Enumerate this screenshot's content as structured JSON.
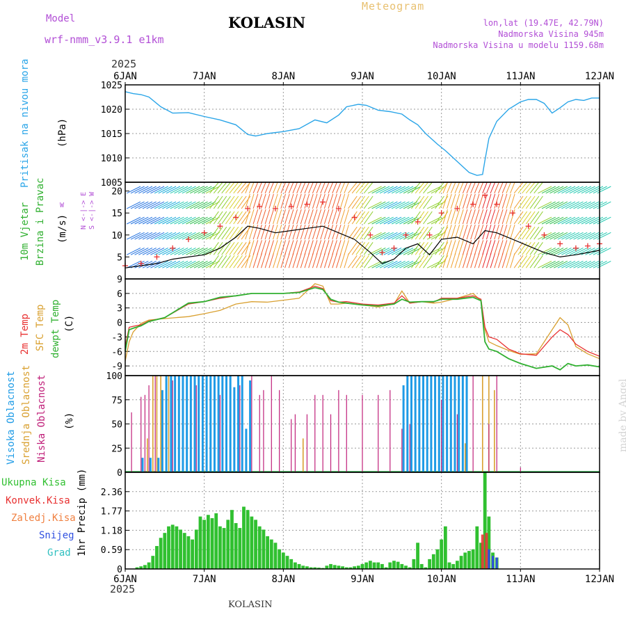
{
  "header": {
    "title": "KOLASIN",
    "model_label": "Model",
    "model_name": "wrf-nmm_v3.9.1 e1km",
    "meteogram": "Meteogram",
    "location": "lon,lat (19.47E, 42.79N)",
    "altitude": "Nadmorska Visina 945m",
    "model_altitude": "Nadmorska Visina u modelu 1159.68m",
    "year_top": "2025",
    "year_bottom": "2025",
    "footer": "KOLASIN",
    "made_by": "made by Angel"
  },
  "colors": {
    "pressure": "#2aa5e8",
    "wind_speed": "#000000",
    "gust": "#e83030",
    "temp2m": "#e83030",
    "sfc_temp": "#d9a030",
    "dewpoint": "#30b030",
    "high_cloud": "#1e9be6",
    "mid_cloud": "#d9a030",
    "low_cloud": "#c0207a",
    "total_precip": "#30c030",
    "conv_precip": "#e83030",
    "freezing_precip": "#f08040",
    "snow": "#3050e0",
    "hail": "#30c0c0"
  },
  "x_axis": {
    "ticks": [
      "6JAN",
      "7JAN",
      "8JAN",
      "9JAN",
      "10JAN",
      "11JAN",
      "12JAN"
    ]
  },
  "panels": {
    "pressure": {
      "label": "Pritisak na nivou mora",
      "unit": "(hPa)",
      "ticks": [
        "1005",
        "1010",
        "1015",
        "1020",
        "1025"
      ]
    },
    "wind": {
      "label1": "10m Vjetar",
      "label2": "Brzina i Pravac",
      "unit": "(m/s)",
      "ticks": [
        "5",
        "10",
        "15",
        "20"
      ],
      "compass": "N <-|-> E",
      "compass2": "W",
      "compass3": "S <-|-> W"
    },
    "temp": {
      "label1": "2m Temp",
      "label2": "SFC Temp",
      "label3": "dewpt Temp",
      "unit": "(C)",
      "ticks": [
        "-9",
        "-6",
        "-3",
        "0",
        "3",
        "6",
        "9"
      ]
    },
    "cloud": {
      "label1": "Visoka Oblacnost",
      "label2": "Srednja Oblacnost",
      "label3": "Niska Oblacnost",
      "unit": "(%)",
      "ticks": [
        "0",
        "25",
        "50",
        "75",
        "100"
      ]
    },
    "precip": {
      "label1": "Ukupna Kisa",
      "label2": "Konvek.Kisa",
      "label3": "Zaledj.Kisa",
      "label4": "Snijeg",
      "label5": "Grad",
      "unit": "1hr Precip (mm)",
      "ticks": [
        "0",
        "0.59",
        "1.18",
        "1.77",
        "2.36"
      ]
    }
  },
  "chart_data": [
    {
      "type": "line",
      "name": "pressure",
      "ylabel": "Pritisak na nivou mora (hPa)",
      "ylim": [
        1005,
        1025
      ],
      "x_days": [
        0,
        0.1,
        0.2,
        0.3,
        0.45,
        0.6,
        0.8,
        1.0,
        1.2,
        1.4,
        1.55,
        1.65,
        1.8,
        2.0,
        2.2,
        2.4,
        2.55,
        2.7,
        2.8,
        2.95,
        3.05,
        3.2,
        3.35,
        3.5,
        3.6,
        3.7,
        3.8,
        3.95,
        4.05,
        4.15,
        4.25,
        4.35,
        4.45,
        4.52,
        4.55,
        4.6,
        4.7,
        4.85,
        5.0,
        5.1,
        5.2,
        5.3,
        5.4,
        5.5,
        5.6,
        5.7,
        5.8,
        5.9,
        6.0
      ],
      "y": [
        1023.6,
        1023.2,
        1023.0,
        1022.5,
        1020.5,
        1019.2,
        1019.3,
        1018.5,
        1017.8,
        1016.8,
        1014.8,
        1014.5,
        1015.0,
        1015.4,
        1016.0,
        1017.8,
        1017.2,
        1018.8,
        1020.5,
        1021.0,
        1020.8,
        1019.8,
        1019.5,
        1019.0,
        1017.8,
        1016.8,
        1015.0,
        1012.8,
        1011.5,
        1010.0,
        1008.5,
        1007.0,
        1006.4,
        1006.6,
        1009.5,
        1014.0,
        1017.5,
        1020.0,
        1021.5,
        1022.0,
        1022.0,
        1021.2,
        1019.2,
        1020.3,
        1021.5,
        1022.0,
        1021.8,
        1022.3,
        1022.3
      ]
    },
    {
      "type": "line",
      "name": "wind",
      "ylabel": "(m/s)",
      "ylim": [
        0,
        22
      ],
      "x_days": [
        0,
        0.2,
        0.4,
        0.6,
        0.8,
        1.0,
        1.2,
        1.4,
        1.55,
        1.7,
        1.9,
        2.1,
        2.3,
        2.5,
        2.7,
        2.9,
        3.1,
        3.25,
        3.4,
        3.55,
        3.7,
        3.85,
        4.0,
        4.2,
        4.4,
        4.55,
        4.7,
        4.9,
        5.1,
        5.3,
        5.5,
        5.7,
        5.85,
        6.0
      ],
      "speed": [
        2.5,
        3,
        3.5,
        4.5,
        5,
        5.5,
        7,
        9.5,
        12,
        11.5,
        10.5,
        11,
        11.5,
        12,
        10.5,
        9,
        6,
        3.5,
        4.5,
        7,
        8,
        5.5,
        9,
        9.5,
        8,
        11,
        10.5,
        9,
        7.5,
        6,
        5,
        5.5,
        6,
        6.5
      ],
      "gust": [
        3,
        3.5,
        5,
        7,
        9,
        10.5,
        12,
        14,
        16,
        16.5,
        16,
        16.5,
        17,
        17.5,
        16,
        14,
        10,
        6,
        7,
        10,
        13,
        10,
        15,
        16,
        17,
        19,
        17,
        15,
        12,
        10,
        8,
        7,
        7.5,
        8
      ]
    },
    {
      "type": "line",
      "name": "temperature",
      "ylabel": "(C)",
      "ylim": [
        -11,
        9
      ],
      "x_days": [
        0,
        0.05,
        0.1,
        0.2,
        0.3,
        0.5,
        0.8,
        1.0,
        1.2,
        1.4,
        1.6,
        1.8,
        2.0,
        2.2,
        2.4,
        2.5,
        2.6,
        2.7,
        2.8,
        3.0,
        3.2,
        3.4,
        3.5,
        3.6,
        3.75,
        3.9,
        4.0,
        4.2,
        4.4,
        4.5,
        4.55,
        4.6,
        4.7,
        4.85,
        5.0,
        5.2,
        5.4,
        5.5,
        5.6,
        5.7,
        5.85,
        6.0
      ],
      "temp2m": [
        -5,
        -1,
        -0.8,
        -0.5,
        0.3,
        1,
        3.8,
        4.3,
        5,
        5.5,
        6,
        6,
        6,
        6.3,
        7.5,
        7,
        4.5,
        4.2,
        4.3,
        3.8,
        3.6,
        4,
        5.5,
        4,
        4.3,
        4.2,
        5,
        5,
        5.5,
        4.8,
        -1,
        -3,
        -3.5,
        -5.5,
        -6.5,
        -6.8,
        -3,
        -1.5,
        -2.5,
        -4.5,
        -6,
        -7
      ],
      "sfc_temp": [
        -8,
        -4,
        -2,
        -0.2,
        0.5,
        0.8,
        1.2,
        1.8,
        2.5,
        3.8,
        4.3,
        4.2,
        4.6,
        5.0,
        8,
        7.5,
        3.8,
        3.8,
        4.0,
        3.6,
        3.2,
        3.8,
        6.5,
        4,
        4.3,
        4.0,
        4.2,
        5.0,
        6.0,
        4.5,
        -1.5,
        -4,
        -4.8,
        -5.8,
        -6.6,
        -6.5,
        -1.5,
        1,
        -0.5,
        -5,
        -6.5,
        -7.5
      ],
      "dewpoint": [
        -6,
        -1.5,
        -1.2,
        -0.7,
        0.2,
        1,
        4,
        4.3,
        5.2,
        5.5,
        6,
        6,
        6,
        6.2,
        7.2,
        6.8,
        4.8,
        4.2,
        4,
        3.6,
        3.4,
        3.8,
        4.8,
        4.2,
        4.3,
        4.3,
        4.8,
        4.8,
        5.2,
        4.5,
        -4,
        -5.5,
        -6,
        -7.5,
        -8.5,
        -9.5,
        -9,
        -9.8,
        -8.5,
        -9,
        -8.8,
        -9.2
      ]
    },
    {
      "type": "bar",
      "name": "cloud_cover",
      "ylabel": "(%)",
      "ylim": [
        0,
        100
      ],
      "high_cloud_x": [
        0.22,
        0.32,
        0.42,
        0.47,
        0.52,
        0.58,
        0.63,
        0.68,
        0.73,
        0.78,
        0.83,
        0.88,
        0.93,
        0.98,
        1.03,
        1.08,
        1.13,
        1.18,
        1.23,
        1.28,
        1.33,
        1.38,
        1.43,
        1.48,
        1.53,
        1.58,
        3.52,
        3.57,
        3.62,
        3.67,
        3.72,
        3.77,
        3.82,
        3.87,
        3.92,
        3.97,
        4.02,
        4.07,
        4.12,
        4.17,
        4.22,
        4.27,
        4.32
      ],
      "high_cloud": [
        15,
        15,
        15,
        85,
        100,
        100,
        100,
        100,
        100,
        100,
        100,
        100,
        100,
        100,
        100,
        100,
        100,
        100,
        100,
        100,
        100,
        88,
        100,
        100,
        45,
        95,
        90,
        100,
        100,
        100,
        100,
        100,
        100,
        100,
        100,
        100,
        100,
        100,
        100,
        100,
        100,
        100,
        100
      ],
      "mid_cloud_x": [
        0.28,
        0.35,
        0.4,
        0.45,
        0.55,
        2.25,
        4.3,
        4.52,
        4.6,
        4.67
      ],
      "mid_cloud": [
        35,
        100,
        100,
        100,
        100,
        35,
        30,
        100,
        100,
        85
      ],
      "low_cloud_x": [
        0.08,
        0.2,
        0.25,
        0.3,
        0.38,
        0.6,
        0.9,
        1.2,
        1.45,
        1.6,
        1.7,
        1.75,
        1.85,
        1.95,
        2.1,
        2.15,
        2.3,
        2.4,
        2.5,
        2.6,
        2.7,
        2.8,
        3.0,
        3.2,
        3.35,
        3.5,
        3.6,
        4.0,
        4.2,
        4.4,
        4.6,
        4.7,
        5.0
      ],
      "low_cloud": [
        62,
        78,
        80,
        90,
        100,
        95,
        90,
        80,
        90,
        100,
        80,
        85,
        100,
        85,
        55,
        60,
        60,
        80,
        80,
        60,
        85,
        80,
        80,
        80,
        85,
        45,
        50,
        75,
        60,
        100,
        50,
        100,
        5
      ]
    },
    {
      "type": "bar",
      "name": "precipitation",
      "ylabel": "1hr Precip (mm)",
      "ylim": [
        0,
        2.95
      ],
      "x_days": [
        0.15,
        0.2,
        0.25,
        0.3,
        0.35,
        0.4,
        0.45,
        0.5,
        0.55,
        0.6,
        0.65,
        0.7,
        0.75,
        0.8,
        0.85,
        0.9,
        0.95,
        1.0,
        1.05,
        1.1,
        1.15,
        1.2,
        1.25,
        1.3,
        1.35,
        1.4,
        1.45,
        1.5,
        1.55,
        1.6,
        1.65,
        1.7,
        1.75,
        1.8,
        1.85,
        1.9,
        1.95,
        2.0,
        2.05,
        2.1,
        2.15,
        2.2,
        2.25,
        2.3,
        2.35,
        2.4,
        2.45,
        2.5,
        2.55,
        2.6,
        2.65,
        2.7,
        2.75,
        2.8,
        2.85,
        2.9,
        2.95,
        3.0,
        3.05,
        3.1,
        3.15,
        3.2,
        3.25,
        3.3,
        3.35,
        3.4,
        3.45,
        3.5,
        3.55,
        3.6,
        3.65,
        3.7,
        3.75,
        3.8,
        3.85,
        3.9,
        3.95,
        4.0,
        4.05,
        4.1,
        4.15,
        4.2,
        4.25,
        4.3,
        4.35,
        4.4,
        4.45,
        4.5,
        4.55,
        4.6,
        4.65,
        4.7
      ],
      "total": [
        0.05,
        0.08,
        0.12,
        0.2,
        0.4,
        0.7,
        0.95,
        1.1,
        1.3,
        1.35,
        1.3,
        1.2,
        1.1,
        1.0,
        0.9,
        1.2,
        1.6,
        1.5,
        1.65,
        1.55,
        1.7,
        1.3,
        1.25,
        1.5,
        1.8,
        1.4,
        1.25,
        1.9,
        1.8,
        1.6,
        1.5,
        1.3,
        1.2,
        1.0,
        0.9,
        0.8,
        0.6,
        0.5,
        0.4,
        0.3,
        0.2,
        0.15,
        0.1,
        0.08,
        0.05,
        0.05,
        0.04,
        0.03,
        0.1,
        0.15,
        0.12,
        0.1,
        0.08,
        0.05,
        0.05,
        0.08,
        0.1,
        0.15,
        0.2,
        0.25,
        0.2,
        0.2,
        0.15,
        0.05,
        0.2,
        0.25,
        0.22,
        0.15,
        0.1,
        0.05,
        0.3,
        0.8,
        0.15,
        0.05,
        0.3,
        0.45,
        0.6,
        0.9,
        1.3,
        0.2,
        0.15,
        0.25,
        0.4,
        0.5,
        0.55,
        0.6,
        1.3,
        0.8,
        2.95,
        1.6,
        0.5,
        0.35
      ],
      "convective_x": [
        4.52,
        4.57
      ],
      "convective": [
        1.05,
        1.1
      ],
      "snow_x": [
        4.6,
        4.65,
        4.7
      ],
      "snow": [
        0.6,
        0.4,
        0.35
      ]
    }
  ]
}
